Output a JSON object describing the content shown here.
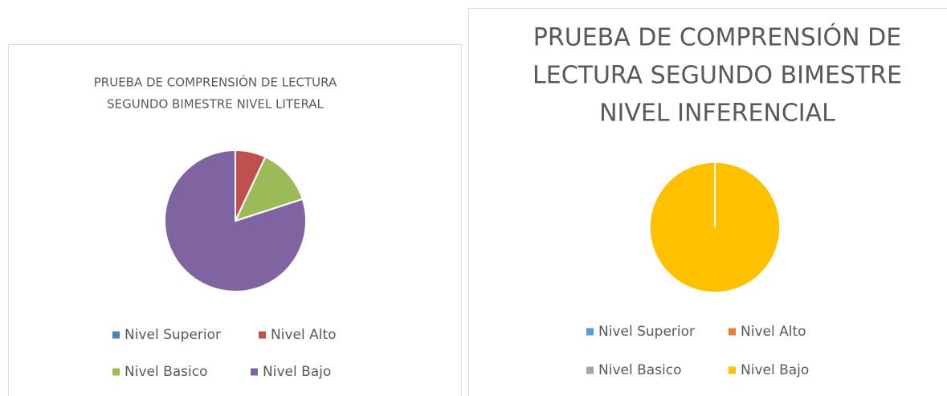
{
  "chart_data": [
    {
      "type": "pie",
      "title": [
        "PRUEBA DE COMPRENSIÓN DE LECTURA",
        "SEGUNDO BIMESTRE NIVEL LITERAL"
      ],
      "categories": [
        "Nivel Superior",
        "Nivel Alto",
        "Nivel Basico",
        "Nivel Bajo"
      ],
      "values": [
        0,
        7,
        13,
        80
      ],
      "colors": [
        "#4f81bd",
        "#c0504d",
        "#9bbb59",
        "#8064a2"
      ],
      "legend": "bottom"
    },
    {
      "type": "pie",
      "title": [
        "PRUEBA DE COMPRENSIÓN DE",
        "LECTURA SEGUNDO BIMESTRE",
        "NIVEL INFERENCIAL"
      ],
      "categories": [
        "Nivel Superior",
        "Nivel Alto",
        "Nivel Basico",
        "Nivel Bajo"
      ],
      "values": [
        0,
        0,
        0,
        100
      ],
      "colors": [
        "#5b9bd5",
        "#ed7d31",
        "#a5a5a5",
        "#ffc000"
      ],
      "legend": "bottom"
    }
  ]
}
